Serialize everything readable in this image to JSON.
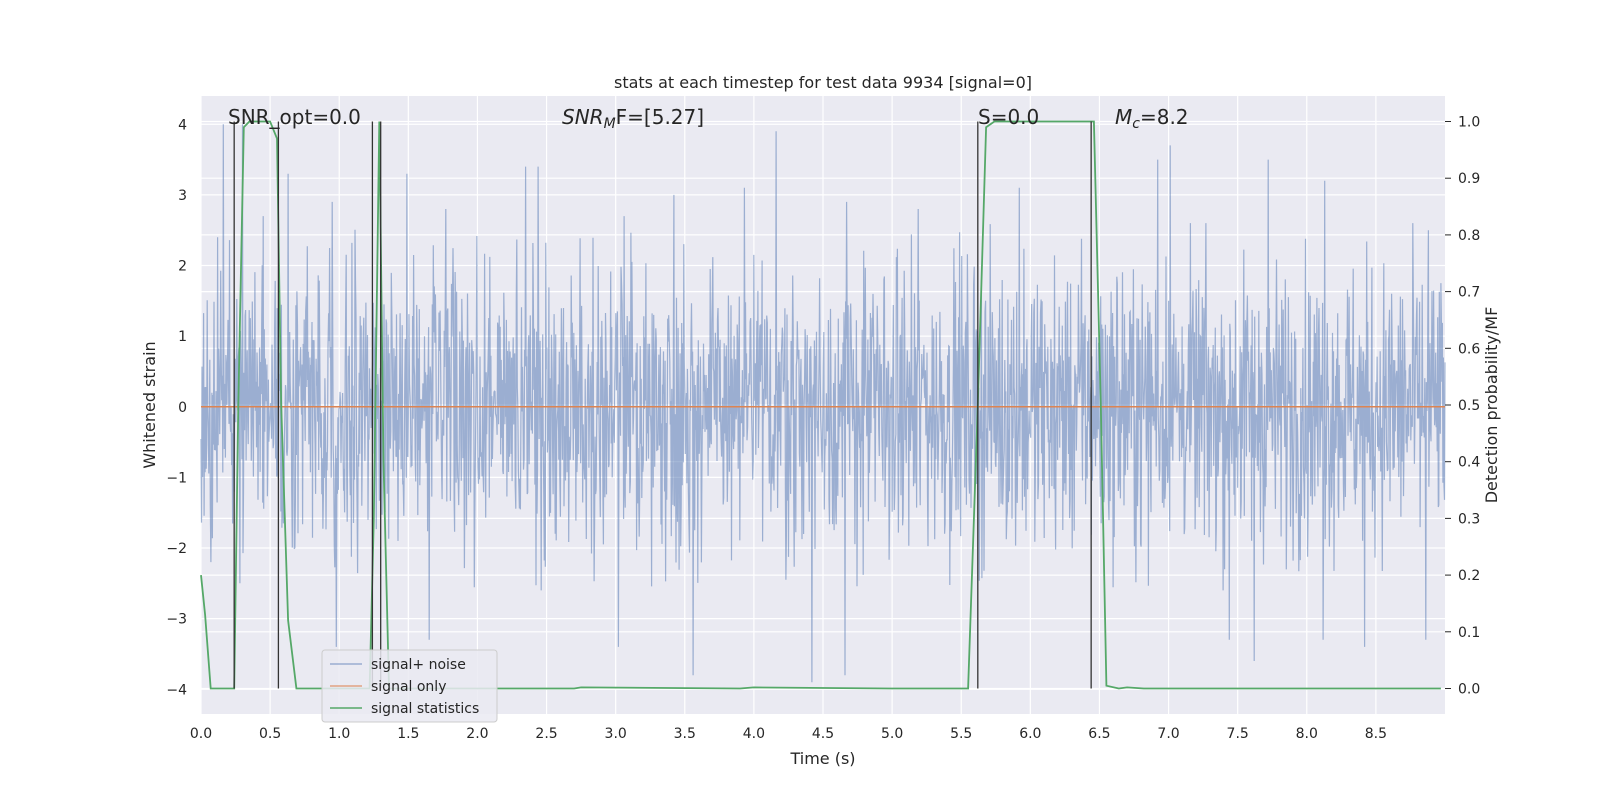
{
  "chart_data": {
    "type": "line",
    "title": "stats at each timestep for test data 9934 [signal=0]",
    "xlabel": "Time (s)",
    "ylabel": "Whitened strain",
    "y2label": "Detection probability/MF",
    "xlim": [
      0,
      9.0
    ],
    "ylim": [
      -4.35,
      4.4
    ],
    "y2lim": [
      -0.045,
      1.045
    ],
    "grid": true,
    "xticks": [
      0.0,
      0.5,
      1.0,
      1.5,
      2.0,
      2.5,
      3.0,
      3.5,
      4.0,
      4.5,
      5.0,
      5.5,
      6.0,
      6.5,
      7.0,
      7.5,
      8.0,
      8.5
    ],
    "xtick_labels": [
      "0.0",
      "0.5",
      "1.0",
      "1.5",
      "2.0",
      "2.5",
      "3.0",
      "3.5",
      "4.0",
      "4.5",
      "5.0",
      "5.5",
      "6.0",
      "6.5",
      "7.0",
      "7.5",
      "8.0",
      "8.5"
    ],
    "yticks": [
      -4,
      -3,
      -2,
      -1,
      0,
      1,
      2,
      3,
      4
    ],
    "ytick_labels": [
      "−4",
      "−3",
      "−2",
      "−1",
      "0",
      "1",
      "2",
      "3",
      "4"
    ],
    "y2ticks": [
      0.0,
      0.1,
      0.2,
      0.3,
      0.4,
      0.5,
      0.6,
      0.7,
      0.8,
      0.9,
      1.0
    ],
    "y2tick_labels": [
      "0.0",
      "0.1",
      "0.2",
      "0.3",
      "0.4",
      "0.5",
      "0.6",
      "0.7",
      "0.8",
      "0.9",
      "1.0"
    ],
    "annotations": {
      "snr_opt": "SNR_opt=0.0",
      "snr_mf_main": "SNR",
      "snr_mf_sub": "M",
      "snr_mf_rest": "F=[5.27]",
      "s_label": "S=0.0",
      "mc_main": "M",
      "mc_sub": "c",
      "mc_rest": "=8.2"
    },
    "legend": {
      "position": "lower-left",
      "entries": [
        "signal+ noise",
        "signal only",
        "signal statistics"
      ]
    },
    "series": [
      {
        "name": "signal+ noise",
        "color": "#4c72b0",
        "kind": "noise",
        "approx_range": [
          -3.9,
          4.0
        ],
        "spikes": [
          {
            "t": 0.16,
            "y": 4.0
          },
          {
            "t": 0.3,
            "y": 4.0
          },
          {
            "t": 0.12,
            "y": 2.4
          },
          {
            "t": 0.45,
            "y": 2.7
          },
          {
            "t": 0.63,
            "y": 3.3
          },
          {
            "t": 0.95,
            "y": 2.9
          },
          {
            "t": 1.49,
            "y": 3.3
          },
          {
            "t": 1.77,
            "y": 2.8
          },
          {
            "t": 2.35,
            "y": 3.4
          },
          {
            "t": 2.44,
            "y": 3.4
          },
          {
            "t": 3.06,
            "y": 2.7
          },
          {
            "t": 3.42,
            "y": 3.0
          },
          {
            "t": 3.93,
            "y": 3.1
          },
          {
            "t": 4.16,
            "y": 3.9
          },
          {
            "t": 4.67,
            "y": 2.9
          },
          {
            "t": 5.19,
            "y": 2.8
          },
          {
            "t": 5.92,
            "y": 3.1
          },
          {
            "t": 6.92,
            "y": 3.5
          },
          {
            "t": 7.01,
            "y": 3.7
          },
          {
            "t": 7.72,
            "y": 3.5
          },
          {
            "t": 8.13,
            "y": 3.2
          },
          {
            "t": 8.88,
            "y": 2.5
          },
          {
            "t": 0.98,
            "y": -3.4
          },
          {
            "t": 1.65,
            "y": -3.3
          },
          {
            "t": 3.02,
            "y": -3.4
          },
          {
            "t": 3.56,
            "y": -3.8
          },
          {
            "t": 4.42,
            "y": -3.9
          },
          {
            "t": 4.66,
            "y": -3.8
          },
          {
            "t": 7.44,
            "y": -3.3
          },
          {
            "t": 7.62,
            "y": -3.6
          },
          {
            "t": 8.12,
            "y": -3.3
          },
          {
            "t": 8.42,
            "y": -3.4
          },
          {
            "t": 8.86,
            "y": -3.3
          },
          {
            "t": 0.07,
            "y": -2.2
          },
          {
            "t": 0.28,
            "y": -2.5
          }
        ]
      },
      {
        "name": "signal only",
        "color": "#dd8452",
        "x": [
          0.0,
          9.0
        ],
        "y": [
          0.0,
          0.0
        ]
      },
      {
        "name": "signal statistics",
        "color": "#55a868",
        "axis": "right",
        "x": [
          0.0,
          0.03,
          0.07,
          0.1,
          0.24,
          0.27,
          0.31,
          0.35,
          0.5,
          0.55,
          0.58,
          0.63,
          0.69,
          0.73,
          1.22,
          1.25,
          1.29,
          1.32,
          1.36,
          1.4,
          2.7,
          2.75,
          3.9,
          4.0,
          5.0,
          5.55,
          5.62,
          5.68,
          5.74,
          6.0,
          6.42,
          6.46,
          6.51,
          6.55,
          6.64,
          6.7,
          6.82,
          7.0,
          8.97
        ],
        "y": [
          0.2,
          0.13,
          0.0,
          0.0,
          0.0,
          0.5,
          0.99,
          1.0,
          1.0,
          0.97,
          0.5,
          0.12,
          0.0,
          0.0,
          0.0,
          0.3,
          1.0,
          0.4,
          0.0,
          0.0,
          0.0,
          0.002,
          0.0,
          0.002,
          0.0,
          0.0,
          0.5,
          0.99,
          1.0,
          1.0,
          1.0,
          1.0,
          0.5,
          0.005,
          0.0,
          0.002,
          0.0,
          0.0,
          0.0
        ]
      }
    ],
    "vertical_lines": {
      "color": "#333333",
      "x": [
        0.24,
        0.56,
        1.24,
        1.3,
        5.62,
        6.44
      ]
    }
  }
}
